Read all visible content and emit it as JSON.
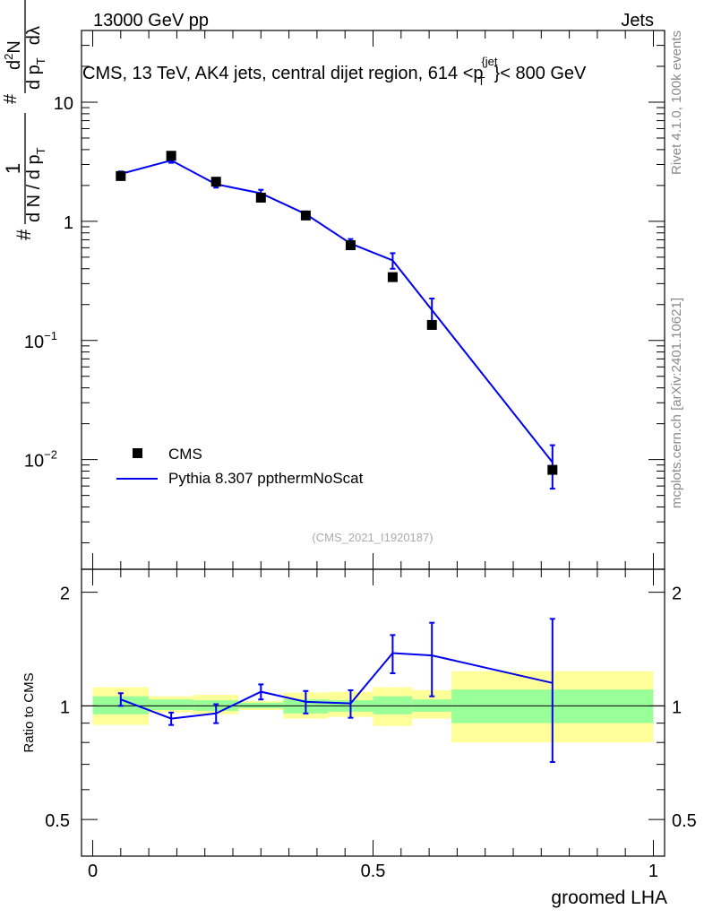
{
  "header": {
    "left": "13000 GeV pp",
    "right": "Jets"
  },
  "side_labels": {
    "rivet": "Rivet 4.1.0,  100k events",
    "mcplots": "mcplots.cern.ch [arXiv:2401.10621]"
  },
  "chart_data": [
    {
      "type": "scatter",
      "title": "CMS, 13 TeV, AK4 jets, central dijet region, 614 <p_T^{jet}< 800 GeV",
      "title_parts": {
        "pre": "CMS, 13 TeV, AK4 jets, central dijet region, 614 <p",
        "sub": "T",
        "sup": "{jet",
        "post": "}< 800 GeV"
      },
      "ylabel": "1/N dN/dp_T d^2N/dp_T dλ",
      "ylabel_parts": {
        "hash1": "#",
        "one": "1",
        "dN": "d N / d p",
        "T": "T",
        "hash2": "#",
        "d2N": "d",
        "two": "2",
        "N": "N",
        "dp": "d p",
        "dlambda": "dλ",
        "hash3": "#",
        "hash4": "#"
      },
      "xlabel": "groomed LHA",
      "yscale": "log",
      "ylim": [
        0.0012,
        40
      ],
      "xlim": [
        -0.02,
        1.02
      ],
      "y_ticks": [
        {
          "value": 10,
          "label": "10"
        },
        {
          "value": 1,
          "label": "1"
        },
        {
          "value": 0.1,
          "label": "10",
          "exp": "−1"
        },
        {
          "value": 0.01,
          "label": "10",
          "exp": "−2"
        }
      ],
      "legend_position": "lower-left",
      "series": [
        {
          "name": "CMS",
          "style": "markers",
          "color": "#000000",
          "x": [
            0.05,
            0.14,
            0.22,
            0.3,
            0.38,
            0.46,
            0.535,
            0.605,
            0.82
          ],
          "values": [
            2.4,
            3.55,
            2.15,
            1.58,
            1.12,
            0.63,
            0.34,
            0.135,
            0.0082
          ]
        },
        {
          "name": "Pythia 8.307 ppthermNoScat",
          "style": "line",
          "color": "#0000ee",
          "x": [
            0.05,
            0.14,
            0.22,
            0.3,
            0.38,
            0.46,
            0.535,
            0.605,
            0.82
          ],
          "values": [
            2.5,
            3.25,
            2.05,
            1.72,
            1.15,
            0.65,
            0.47,
            0.18,
            0.0095
          ],
          "err_up": [
            0.12,
            0.15,
            0.13,
            0.12,
            0.06,
            0.06,
            0.07,
            0.045,
            0.0037
          ],
          "err_down": [
            0.12,
            0.15,
            0.13,
            0.12,
            0.06,
            0.06,
            0.07,
            0.045,
            0.0038
          ]
        }
      ],
      "watermark": "(CMS_2021_I1920187)"
    },
    {
      "type": "line",
      "ylabel": "Ratio to CMS",
      "yscale": "log",
      "ylim": [
        0.4,
        2.3
      ],
      "xlim": [
        -0.02,
        1.02
      ],
      "y_ticks": [
        {
          "value": 2,
          "label": "2"
        },
        {
          "value": 1,
          "label": "1"
        },
        {
          "value": 0.5,
          "label": "0.5"
        }
      ],
      "x_ticks": [
        {
          "value": 0,
          "label": "0"
        },
        {
          "value": 0.5,
          "label": "0.5"
        },
        {
          "value": 1,
          "label": "1"
        }
      ],
      "bands": {
        "color_inner": "#99ff99",
        "color_outer": "#ffff99",
        "bins": [
          {
            "x0": 0.0,
            "x1": 0.1,
            "inner": [
              0.95,
              1.06
            ],
            "outer": [
              0.89,
              1.12
            ]
          },
          {
            "x0": 0.1,
            "x1": 0.18,
            "inner": [
              0.975,
              1.04
            ],
            "outer": [
              0.96,
              1.06
            ]
          },
          {
            "x0": 0.18,
            "x1": 0.26,
            "inner": [
              0.97,
              1.035
            ],
            "outer": [
              0.95,
              1.07
            ]
          },
          {
            "x0": 0.26,
            "x1": 0.34,
            "inner": [
              0.985,
              1.02
            ],
            "outer": [
              0.975,
              1.03
            ]
          },
          {
            "x0": 0.34,
            "x1": 0.42,
            "inner": [
              0.955,
              1.04
            ],
            "outer": [
              0.925,
              1.085
            ]
          },
          {
            "x0": 0.42,
            "x1": 0.5,
            "inner": [
              0.965,
              1.035
            ],
            "outer": [
              0.935,
              1.09
            ]
          },
          {
            "x0": 0.5,
            "x1": 0.57,
            "inner": [
              0.95,
              1.06
            ],
            "outer": [
              0.885,
              1.12
            ]
          },
          {
            "x0": 0.57,
            "x1": 0.64,
            "inner": [
              0.965,
              1.04
            ],
            "outer": [
              0.925,
              1.1
            ]
          },
          {
            "x0": 0.64,
            "x1": 1.0,
            "inner": [
              0.9,
              1.105
            ],
            "outer": [
              0.8,
              1.235
            ]
          }
        ]
      },
      "series": [
        {
          "name": "Pythia 8.307 ppthermNoScat",
          "color": "#0000ee",
          "x": [
            0.05,
            0.14,
            0.22,
            0.3,
            0.38,
            0.46,
            0.535,
            0.605,
            0.82
          ],
          "values": [
            1.04,
            0.925,
            0.955,
            1.09,
            1.025,
            1.015,
            1.38,
            1.36,
            1.15
          ],
          "err_up": [
            0.04,
            0.035,
            0.055,
            0.05,
            0.07,
            0.085,
            0.16,
            0.3,
            0.55
          ],
          "err_down": [
            0.04,
            0.035,
            0.055,
            0.05,
            0.07,
            0.085,
            0.16,
            0.3,
            0.44
          ]
        }
      ]
    }
  ]
}
